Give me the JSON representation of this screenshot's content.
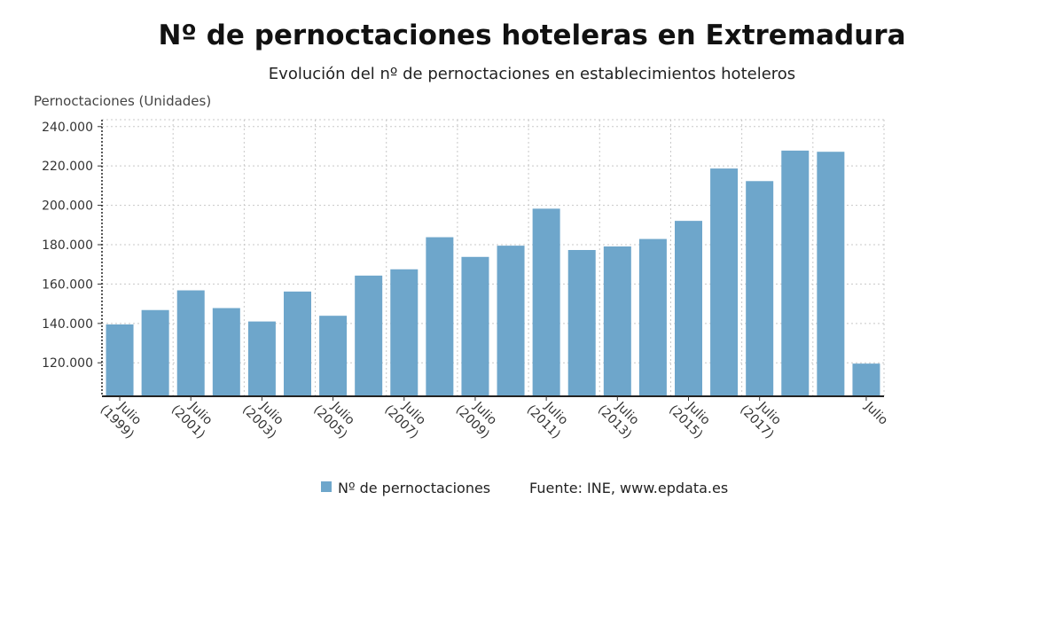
{
  "chart_data": {
    "type": "bar",
    "title": "Nº de pernoctaciones hoteleras en Extremadura",
    "subtitle": "Evolución del nº de pernoctaciones en establecimientos hoteleros",
    "ylabel": "Pernoctaciones (Unidades)",
    "ylim": [
      103000,
      243500
    ],
    "yticks": [
      120000,
      140000,
      160000,
      180000,
      200000,
      220000,
      240000
    ],
    "ytick_labels": [
      "120.000",
      "140.000",
      "160.000",
      "180.000",
      "200.000",
      "220.000",
      "240.000"
    ],
    "grid": true,
    "categories": [
      "Julio 1999",
      "Julio 2000",
      "Julio 2001",
      "Julio 2002",
      "Julio 2003",
      "Julio 2004",
      "Julio 2005",
      "Julio 2006",
      "Julio 2007",
      "Julio 2008",
      "Julio 2009",
      "Julio 2010",
      "Julio 2011",
      "Julio 2012",
      "Julio 2013",
      "Julio 2014",
      "Julio 2015",
      "Julio 2016",
      "Julio 2017",
      "Julio 2018",
      "Julio 2019",
      "Julio 2020"
    ],
    "x_tick_labels": [
      {
        "index": 0,
        "line1": "Julio",
        "line2": "(1999)"
      },
      {
        "index": 2,
        "line1": "Julio",
        "line2": "(2001)"
      },
      {
        "index": 4,
        "line1": "Julio",
        "line2": "(2003)"
      },
      {
        "index": 6,
        "line1": "Julio",
        "line2": "(2005)"
      },
      {
        "index": 8,
        "line1": "Julio",
        "line2": "(2007)"
      },
      {
        "index": 10,
        "line1": "Julio",
        "line2": "(2009)"
      },
      {
        "index": 12,
        "line1": "Julio",
        "line2": "(2011)"
      },
      {
        "index": 14,
        "line1": "Julio",
        "line2": "(2013)"
      },
      {
        "index": 16,
        "line1": "Julio",
        "line2": "(2015)"
      },
      {
        "index": 18,
        "line1": "Julio",
        "line2": "(2017)"
      },
      {
        "index": 21,
        "line1": "Julio",
        "line2": ""
      }
    ],
    "series": [
      {
        "name": "Nº de pernoctaciones",
        "color": "#6ea6cb",
        "values": [
          139500,
          146800,
          156800,
          147800,
          141000,
          156200,
          143900,
          164300,
          167500,
          183800,
          173800,
          179500,
          198300,
          177300,
          179100,
          182900,
          192100,
          218700,
          212300,
          227800,
          227200,
          119600
        ]
      }
    ],
    "legend": {
      "position": "bottom-center",
      "label": "Nº de pernoctaciones"
    },
    "source": "Fuente: INE, www.epdata.es"
  }
}
